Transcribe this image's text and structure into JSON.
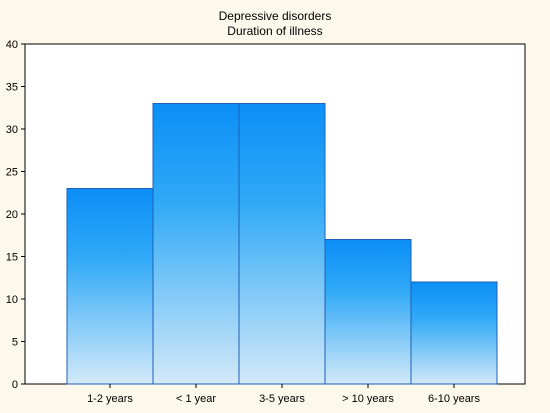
{
  "chart_data": {
    "type": "bar",
    "title": "Depressive disorders",
    "subtitle": "Duration of illness",
    "xlabel": "",
    "ylabel": "",
    "categories": [
      "1-2 years",
      "< 1 year",
      "3-5 years",
      "> 10 years",
      "6-10 years"
    ],
    "values": [
      23,
      33,
      33,
      17,
      12
    ],
    "ylim": [
      0,
      40
    ],
    "yticks": [
      0,
      5,
      10,
      15,
      20,
      25,
      30,
      35,
      40
    ],
    "grid": false,
    "legend": "none",
    "colors": {
      "background": "#fdf8ec",
      "plot_area": "#ffffff",
      "bar_top": "#0b8ff7",
      "bar_mid": "#2fa9f7",
      "bar_bottom": "#d3e9f8",
      "bar_edge": "#1f5fb8",
      "axis": "#000000"
    }
  }
}
